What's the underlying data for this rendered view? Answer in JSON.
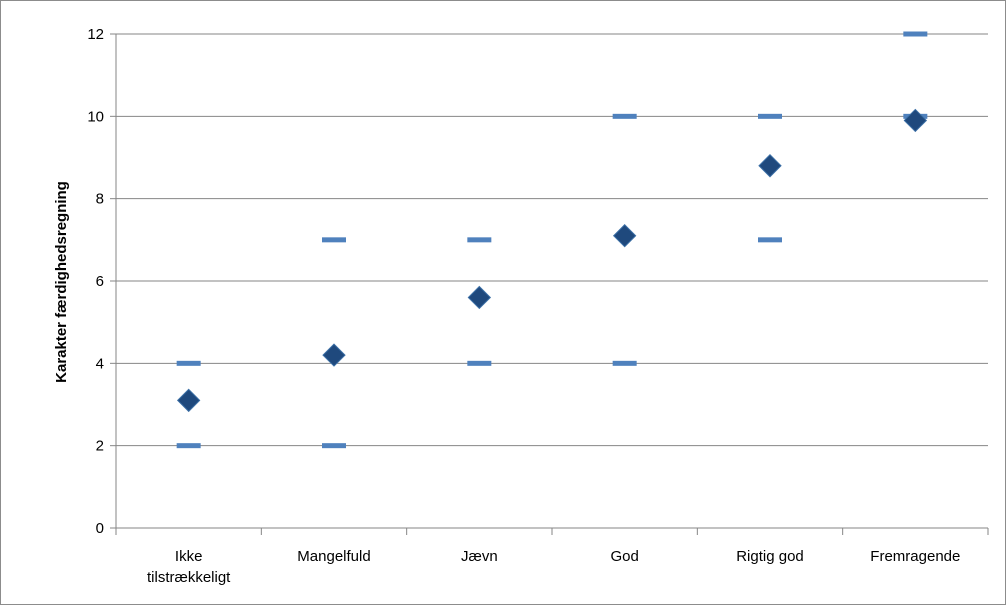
{
  "chart_data": {
    "type": "scatter",
    "title": "",
    "xlabel": "",
    "ylabel": "Karakter færdighedsregning",
    "ylim": [
      0,
      12
    ],
    "yticks": [
      0,
      2,
      4,
      6,
      8,
      10,
      12
    ],
    "categories": [
      [
        "Ikke",
        "tilstrækkeligt"
      ],
      [
        "Mangelfuld"
      ],
      [
        "Jævn"
      ],
      [
        "God"
      ],
      [
        "Rigtig god"
      ],
      [
        "Fremragende"
      ]
    ],
    "series": [
      {
        "marker": "dash",
        "color": "#4f81bd",
        "values": [
          2,
          2,
          4,
          4,
          7,
          10
        ]
      },
      {
        "marker": "dash",
        "color": "#4f81bd",
        "values": [
          4,
          7,
          7,
          10,
          10,
          12
        ]
      },
      {
        "marker": "diamond",
        "color": "#1f497d",
        "values": [
          3.1,
          4.2,
          5.6,
          7.1,
          8.8,
          9.9
        ]
      }
    ],
    "grid": true,
    "legend": "none"
  }
}
